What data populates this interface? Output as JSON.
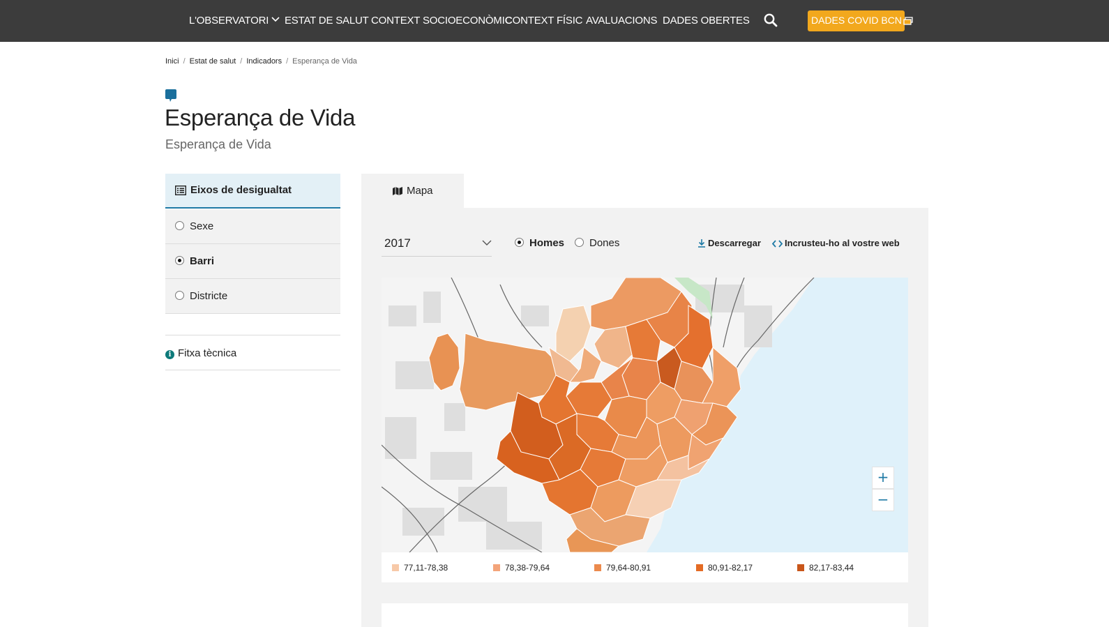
{
  "nav": {
    "items": [
      "L'OBSERVATORI",
      "ESTAT DE SALUT",
      "CONTEXT SOCIOECONÒMIC",
      "CONTEXT FÍSIC",
      "AVALUACIONS",
      "DADES OBERTES"
    ],
    "covid_button": "DADES COVID BCN",
    "accent_color": "#f2a81d",
    "background_color": "#3c3c3c"
  },
  "breadcrumb": [
    "Inici",
    "Estat de salut",
    "Indicadors",
    "Esperança de Vida"
  ],
  "page": {
    "title": "Esperança de Vida",
    "subtitle": "Esperança de Vida"
  },
  "sidebar": {
    "header": "Eixos de desigualtat",
    "options": [
      {
        "label": "Sexe",
        "selected": false
      },
      {
        "label": "Barri",
        "selected": true
      },
      {
        "label": "Districte",
        "selected": false
      }
    ],
    "fitxa": "Fitxa tècnica"
  },
  "main": {
    "tab": "Mapa",
    "year": "2017",
    "sex_options": [
      {
        "label": "Homes",
        "selected": true
      },
      {
        "label": "Dones",
        "selected": false
      }
    ],
    "download": "Descarregar",
    "embed": "Incrusteu-ho al vostre web",
    "zoom_in": "+",
    "zoom_out": "−"
  },
  "legend": [
    {
      "label": "77,11-78,38",
      "color": "#f7c9a8"
    },
    {
      "label": "78,38-79,64",
      "color": "#f3a47a"
    },
    {
      "label": "79,64-80,91",
      "color": "#ec8a4d"
    },
    {
      "label": "80,91-82,17",
      "color": "#e46b24"
    },
    {
      "label": "82,17-83,44",
      "color": "#c9561a"
    }
  ]
}
